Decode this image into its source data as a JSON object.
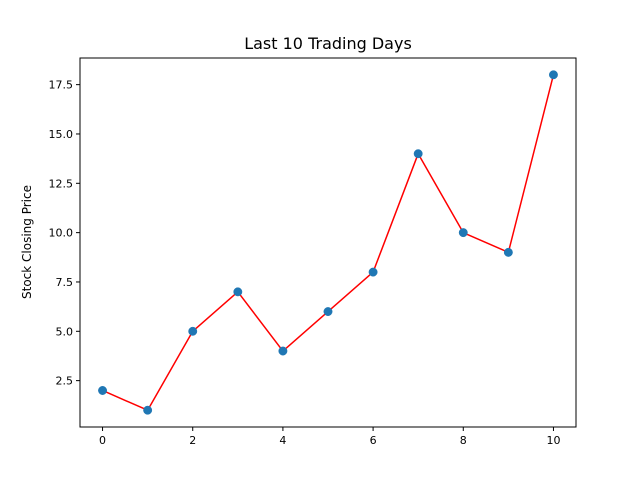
{
  "chart_data": {
    "type": "line",
    "title": "Last 10 Trading Days",
    "xlabel": "",
    "ylabel": "Stock Closing Price",
    "x": [
      0,
      1,
      2,
      3,
      4,
      5,
      6,
      7,
      8,
      9,
      10
    ],
    "series": [
      {
        "values": [
          2,
          1,
          5,
          7,
          4,
          6,
          8,
          14,
          10,
          9,
          18
        ],
        "line_color": "#ff0000",
        "marker_color": "#1f77b4"
      }
    ],
    "xlim": [
      -0.5,
      10.5
    ],
    "ylim": [
      0.15,
      18.85
    ],
    "x_ticks": [
      0,
      2,
      4,
      6,
      8,
      10
    ],
    "x_tick_labels": [
      "0",
      "2",
      "4",
      "6",
      "8",
      "10"
    ],
    "y_ticks": [
      2.5,
      5.0,
      7.5,
      10.0,
      12.5,
      15.0,
      17.5
    ],
    "y_tick_labels": [
      "2.5",
      "5.0",
      "7.5",
      "10.0",
      "12.5",
      "15.0",
      "17.5"
    ],
    "grid": false,
    "legend": "none"
  }
}
